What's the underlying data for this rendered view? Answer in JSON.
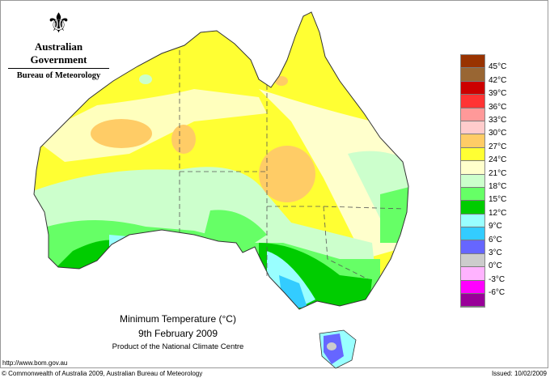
{
  "logo": {
    "government": "Australian Government",
    "bureau": "Bureau of Meteorology"
  },
  "title": {
    "line1": "Minimum Temperature (°C)",
    "line2": "9th February 2009",
    "line3": "Product of the National Climate Centre"
  },
  "url": "http://www.bom.gov.au",
  "copyright": "© Commonwealth of Australia 2009, Australian Bureau of Meteorology",
  "issued": "Issued: 10/02/2009",
  "legend": {
    "colors": [
      "#993300",
      "#996633",
      "#cc0000",
      "#ff3333",
      "#ff9999",
      "#ffcccc",
      "#ffcc66",
      "#ffff33",
      "#ffffcc",
      "#ccffcc",
      "#66ff66",
      "#00cc00",
      "#99ffff",
      "#33ccff",
      "#6666ff",
      "#cccccc",
      "#ffb3ff",
      "#ff00ff",
      "#990099"
    ],
    "labels": [
      "45°C",
      "42°C",
      "39°C",
      "36°C",
      "33°C",
      "30°C",
      "27°C",
      "24°C",
      "21°C",
      "18°C",
      "15°C",
      "12°C",
      "9°C",
      "6°C",
      "3°C",
      "0°C",
      "-3°C",
      "-6°C"
    ]
  }
}
